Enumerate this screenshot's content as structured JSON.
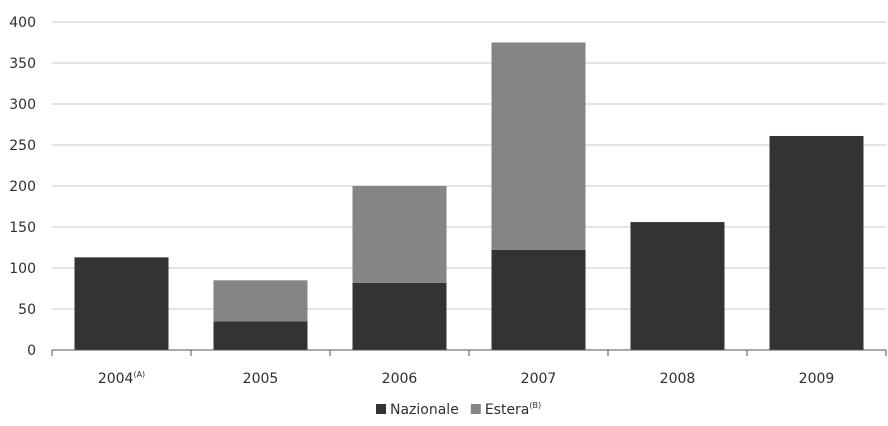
{
  "chart_data": {
    "type": "bar",
    "stacked": true,
    "categories": [
      {
        "label": "2004",
        "superscript": "(A)"
      },
      {
        "label": "2005",
        "superscript": ""
      },
      {
        "label": "2006",
        "superscript": ""
      },
      {
        "label": "2007",
        "superscript": ""
      },
      {
        "label": "2008",
        "superscript": ""
      },
      {
        "label": "2009",
        "superscript": ""
      }
    ],
    "series": [
      {
        "name": "Nazionale",
        "superscript": "",
        "color": "#333333",
        "values": [
          113,
          35,
          82,
          122,
          156,
          261
        ]
      },
      {
        "name": "Estera",
        "superscript": "(B)",
        "color": "#858585",
        "values": [
          0,
          50,
          118,
          253,
          0,
          0
        ]
      }
    ],
    "ylim": [
      0,
      400
    ],
    "yticks": [
      0,
      50,
      100,
      150,
      200,
      250,
      300,
      350,
      400
    ],
    "grid": true,
    "legend_position": "bottom-center",
    "title": "",
    "xlabel": "",
    "ylabel": ""
  }
}
